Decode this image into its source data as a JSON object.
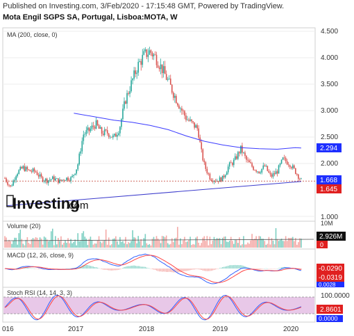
{
  "header": {
    "published": "Published on Investing.com, 3/Feb/2020 - 17:15:48 GMT, Powered by TradingView.",
    "title": "Mota Engil SGPS SA, Portugal, Lisboa:MOTA, W"
  },
  "watermark": {
    "text_main": "Investing",
    "text_suffix": ".com"
  },
  "colors": {
    "up": "#26a69a",
    "down": "#d9534f",
    "ma": "#3b3bff",
    "trendline": "#3b3bcc",
    "macd_line": "#2f5fff",
    "signal_line": "#ff4444",
    "stoch_fill": "#e8c8e8",
    "price_tag": "#e02020",
    "ma_tag": "#1e2fff"
  },
  "chart_data": [
    {
      "type": "candlestick",
      "title": "MA (200, close, 0)",
      "ylim": [
        1.0,
        4.5
      ],
      "yticks": [
        "4.500",
        "4.000",
        "3.500",
        "3.000",
        "2.500",
        "2.000",
        "1.000"
      ],
      "xticks": [
        "016",
        "2017",
        "2018",
        "2019",
        "2020"
      ],
      "last_price": "1.645",
      "ma_value": "2.294",
      "horizontal_line_value": "1.668",
      "price_path": [
        [
          2016.0,
          1.72
        ],
        [
          2016.08,
          1.55
        ],
        [
          2016.16,
          1.82
        ],
        [
          2016.25,
          1.92
        ],
        [
          2016.33,
          1.86
        ],
        [
          2016.42,
          1.85
        ],
        [
          2016.5,
          1.72
        ],
        [
          2016.58,
          1.68
        ],
        [
          2016.67,
          1.72
        ],
        [
          2016.75,
          1.66
        ],
        [
          2016.83,
          1.72
        ],
        [
          2016.92,
          1.72
        ],
        [
          2017.0,
          1.95
        ],
        [
          2017.08,
          2.55
        ],
        [
          2017.16,
          2.62
        ],
        [
          2017.25,
          2.75
        ],
        [
          2017.33,
          2.58
        ],
        [
          2017.42,
          2.58
        ],
        [
          2017.5,
          2.48
        ],
        [
          2017.58,
          2.68
        ],
        [
          2017.66,
          3.2
        ],
        [
          2017.75,
          3.55
        ],
        [
          2017.83,
          3.85
        ],
        [
          2017.92,
          4.05
        ],
        [
          2018.0,
          4.12
        ],
        [
          2018.08,
          4.0
        ],
        [
          2018.16,
          3.8
        ],
        [
          2018.25,
          3.55
        ],
        [
          2018.33,
          3.3
        ],
        [
          2018.42,
          3.05
        ],
        [
          2018.5,
          2.85
        ],
        [
          2018.58,
          2.75
        ],
        [
          2018.66,
          2.65
        ],
        [
          2018.7,
          2.25
        ],
        [
          2018.75,
          1.95
        ],
        [
          2018.83,
          1.72
        ],
        [
          2018.92,
          1.68
        ],
        [
          2019.0,
          1.72
        ],
        [
          2019.08,
          1.95
        ],
        [
          2019.16,
          2.05
        ],
        [
          2019.25,
          2.28
        ],
        [
          2019.33,
          2.05
        ],
        [
          2019.42,
          1.92
        ],
        [
          2019.5,
          1.85
        ],
        [
          2019.58,
          1.95
        ],
        [
          2019.66,
          1.75
        ],
        [
          2019.75,
          1.85
        ],
        [
          2019.83,
          2.08
        ],
        [
          2019.92,
          2.0
        ],
        [
          2020.0,
          1.85
        ],
        [
          2020.08,
          1.68
        ]
      ],
      "ma_path": [
        [
          2016.95,
          2.95
        ],
        [
          2017.25,
          2.88
        ],
        [
          2017.5,
          2.82
        ],
        [
          2017.75,
          2.78
        ],
        [
          2018.0,
          2.72
        ],
        [
          2018.25,
          2.64
        ],
        [
          2018.5,
          2.52
        ],
        [
          2018.75,
          2.42
        ],
        [
          2019.0,
          2.35
        ],
        [
          2019.25,
          2.3
        ],
        [
          2019.5,
          2.28
        ],
        [
          2019.75,
          2.27
        ],
        [
          2020.0,
          2.3
        ],
        [
          2020.08,
          2.294
        ]
      ],
      "trendline": [
        [
          2016.02,
          1.2
        ],
        [
          2020.08,
          1.66
        ]
      ]
    },
    {
      "type": "bar",
      "title": "Volume (20)",
      "yticks": [
        "10M",
        "0"
      ],
      "last_value": "2.926M"
    },
    {
      "type": "line",
      "title": "MACD (12, 26, close, 9)",
      "series": [
        {
          "name": "MACD",
          "value": "-0.0290"
        },
        {
          "name": "Signal",
          "value": "-0.0319"
        },
        {
          "name": "Histogram",
          "value": "0.0028"
        }
      ]
    },
    {
      "type": "line",
      "title": "Stoch RSI (14, 14, 3, 3)",
      "ylim": [
        0,
        100
      ],
      "yticks": [
        "100.0000"
      ],
      "series": [
        {
          "name": "K",
          "value": "2.8601"
        },
        {
          "name": "D",
          "value": "0.0000"
        }
      ]
    }
  ]
}
